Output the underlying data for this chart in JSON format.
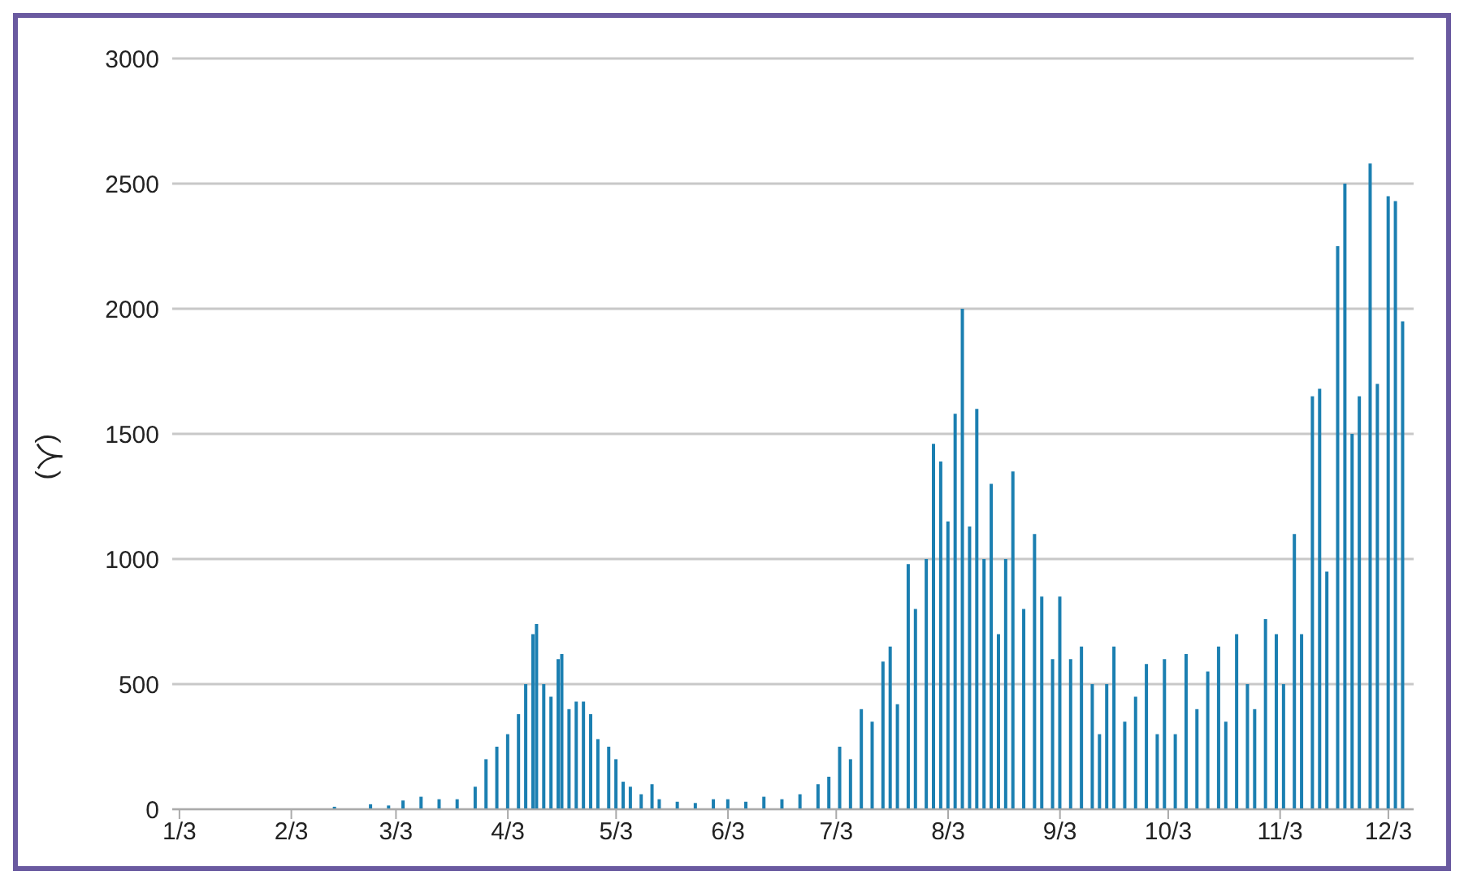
{
  "chart_data": {
    "type": "bar",
    "ylabel": "(人)",
    "color": "#1b7fb1",
    "x": [
      "--01-15",
      "--01-25",
      "--02-05",
      "--02-15",
      "--02-25",
      "--03-01",
      "--03-05",
      "--03-10",
      "--03-15",
      "--03-20",
      "--03-25",
      "--03-28",
      "--03-31",
      "--04-03",
      "--04-06",
      "--04-08",
      "--04-10",
      "--04-11",
      "--04-13",
      "--04-15",
      "--04-17",
      "--04-18",
      "--04-20",
      "--04-22",
      "--04-24",
      "--04-26",
      "--04-28",
      "--05-01",
      "--05-03",
      "--05-05",
      "--05-07",
      "--05-10",
      "--05-13",
      "--05-15",
      "--05-20",
      "--05-25",
      "--05-30",
      "--06-03",
      "--06-08",
      "--06-13",
      "--06-18",
      "--06-23",
      "--06-28",
      "--07-01",
      "--07-04",
      "--07-07",
      "--07-10",
      "--07-13",
      "--07-16",
      "--07-18",
      "--07-20",
      "--07-23",
      "--07-25",
      "--07-28",
      "--07-30",
      "--08-01",
      "--08-03",
      "--08-05",
      "--08-07",
      "--08-09",
      "--08-11",
      "--08-13",
      "--08-15",
      "--08-17",
      "--08-19",
      "--08-21",
      "--08-24",
      "--08-27",
      "--08-29",
      "--09-01",
      "--09-03",
      "--09-06",
      "--09-09",
      "--09-12",
      "--09-14",
      "--09-16",
      "--09-18",
      "--09-21",
      "--09-24",
      "--09-27",
      "--09-30",
      "--10-02",
      "--10-05",
      "--10-08",
      "--10-11",
      "--10-14",
      "--10-17",
      "--10-19",
      "--10-22",
      "--10-25",
      "--10-27",
      "--10-30",
      "--11-02",
      "--11-04",
      "--11-07",
      "--11-09",
      "--11-12",
      "--11-14",
      "--11-16",
      "--11-19",
      "--11-21",
      "--11-23",
      "--11-25",
      "--11-28",
      "--11-30",
      "--12-03",
      "--12-05",
      "--12-07"
    ],
    "values": [
      0,
      1,
      1,
      10,
      20,
      15,
      35,
      50,
      40,
      40,
      90,
      200,
      250,
      300,
      380,
      500,
      700,
      740,
      500,
      450,
      600,
      620,
      400,
      430,
      430,
      380,
      280,
      250,
      200,
      110,
      90,
      60,
      100,
      40,
      30,
      25,
      40,
      40,
      30,
      50,
      40,
      60,
      100,
      130,
      250,
      200,
      400,
      350,
      590,
      650,
      420,
      980,
      800,
      1000,
      1460,
      1390,
      1150,
      1580,
      2000,
      1130,
      1600,
      1000,
      1300,
      700,
      1000,
      1350,
      800,
      1100,
      850,
      600,
      850,
      600,
      650,
      500,
      300,
      500,
      650,
      350,
      450,
      580,
      300,
      600,
      300,
      620,
      400,
      550,
      650,
      350,
      700,
      500,
      400,
      760,
      700,
      500,
      1100,
      700,
      1650,
      1680,
      950,
      2250,
      2500,
      1500,
      1650,
      2580,
      1700,
      2450,
      2430,
      1950
    ],
    "xlim": [
      "--01-01",
      "--12-10"
    ],
    "xticks": [
      {
        "value": "--01-03",
        "label": "1/3"
      },
      {
        "value": "--02-03",
        "label": "2/3"
      },
      {
        "value": "--03-03",
        "label": "3/3"
      },
      {
        "value": "--04-03",
        "label": "4/3"
      },
      {
        "value": "--05-03",
        "label": "5/3"
      },
      {
        "value": "--06-03",
        "label": "6/3"
      },
      {
        "value": "--07-03",
        "label": "7/3"
      },
      {
        "value": "--08-03",
        "label": "8/3"
      },
      {
        "value": "--09-03",
        "label": "9/3"
      },
      {
        "value": "--10-03",
        "label": "10/3"
      },
      {
        "value": "--11-03",
        "label": "11/3"
      },
      {
        "value": "--12-03",
        "label": "12/3"
      }
    ],
    "ylim": [
      0,
      3000
    ],
    "yticks": [
      0,
      500,
      1000,
      1500,
      2000,
      2500,
      3000
    ],
    "grid": "y",
    "legend": false
  }
}
